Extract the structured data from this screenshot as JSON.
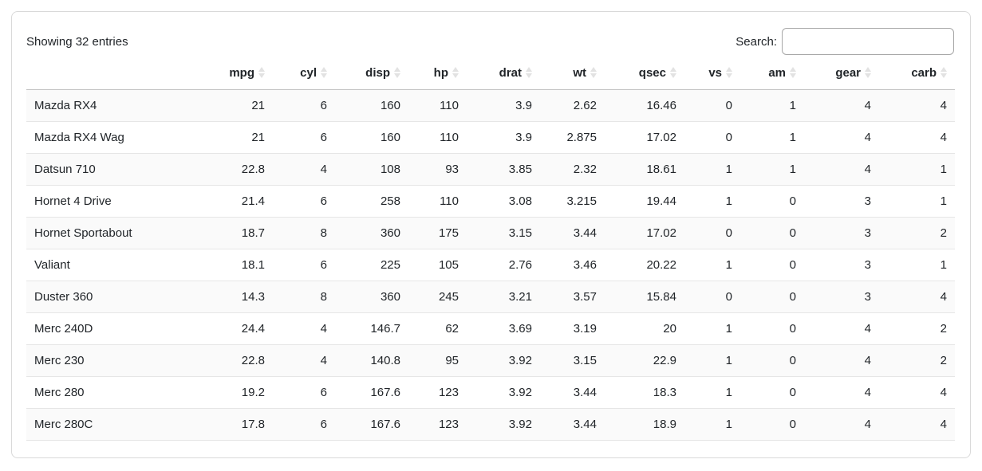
{
  "info_text": "Showing 32 entries",
  "search": {
    "label": "Search:",
    "value": "",
    "placeholder": ""
  },
  "table": {
    "row_name_header": "",
    "columns": [
      "mpg",
      "cyl",
      "disp",
      "hp",
      "drat",
      "wt",
      "qsec",
      "vs",
      "am",
      "gear",
      "carb"
    ],
    "rows": [
      {
        "name": "Mazda RX4",
        "values": [
          "21",
          "6",
          "160",
          "110",
          "3.9",
          "2.62",
          "16.46",
          "0",
          "1",
          "4",
          "4"
        ]
      },
      {
        "name": "Mazda RX4 Wag",
        "values": [
          "21",
          "6",
          "160",
          "110",
          "3.9",
          "2.875",
          "17.02",
          "0",
          "1",
          "4",
          "4"
        ]
      },
      {
        "name": "Datsun 710",
        "values": [
          "22.8",
          "4",
          "108",
          "93",
          "3.85",
          "2.32",
          "18.61",
          "1",
          "1",
          "4",
          "1"
        ]
      },
      {
        "name": "Hornet 4 Drive",
        "values": [
          "21.4",
          "6",
          "258",
          "110",
          "3.08",
          "3.215",
          "19.44",
          "1",
          "0",
          "3",
          "1"
        ]
      },
      {
        "name": "Hornet Sportabout",
        "values": [
          "18.7",
          "8",
          "360",
          "175",
          "3.15",
          "3.44",
          "17.02",
          "0",
          "0",
          "3",
          "2"
        ]
      },
      {
        "name": "Valiant",
        "values": [
          "18.1",
          "6",
          "225",
          "105",
          "2.76",
          "3.46",
          "20.22",
          "1",
          "0",
          "3",
          "1"
        ]
      },
      {
        "name": "Duster 360",
        "values": [
          "14.3",
          "8",
          "360",
          "245",
          "3.21",
          "3.57",
          "15.84",
          "0",
          "0",
          "3",
          "4"
        ]
      },
      {
        "name": "Merc 240D",
        "values": [
          "24.4",
          "4",
          "146.7",
          "62",
          "3.69",
          "3.19",
          "20",
          "1",
          "0",
          "4",
          "2"
        ]
      },
      {
        "name": "Merc 230",
        "values": [
          "22.8",
          "4",
          "140.8",
          "95",
          "3.92",
          "3.15",
          "22.9",
          "1",
          "0",
          "4",
          "2"
        ]
      },
      {
        "name": "Merc 280",
        "values": [
          "19.2",
          "6",
          "167.6",
          "123",
          "3.92",
          "3.44",
          "18.3",
          "1",
          "0",
          "4",
          "4"
        ]
      },
      {
        "name": "Merc 280C",
        "values": [
          "17.8",
          "6",
          "167.6",
          "123",
          "3.92",
          "3.44",
          "18.9",
          "1",
          "0",
          "4",
          "4"
        ]
      }
    ]
  },
  "icons": {
    "sort": "sort-icon"
  },
  "colors": {
    "text": "#212529",
    "card_border": "#d9d9d9",
    "header_border": "#c3c3c3",
    "row_border": "#e6e6e6",
    "stripe": "#fafafa",
    "sort_icon": "#e2e2e2",
    "input_border": "#a6a6a6"
  }
}
